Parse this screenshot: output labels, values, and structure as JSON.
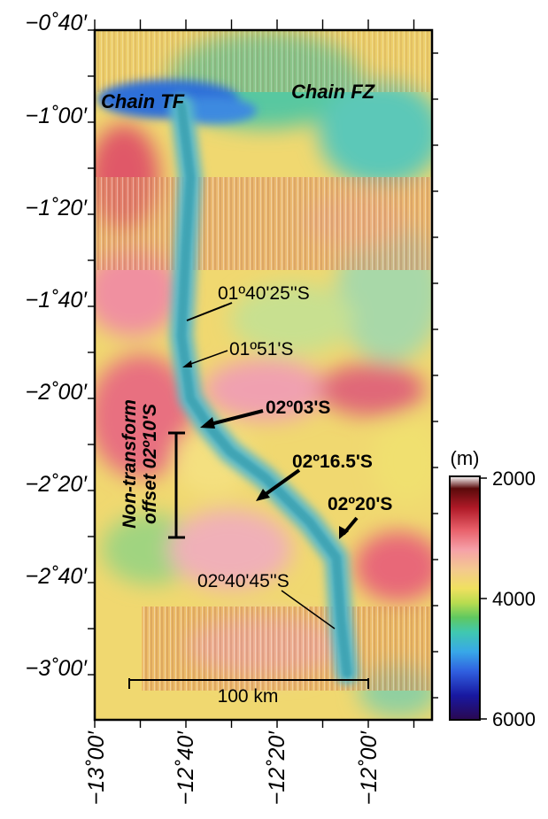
{
  "map": {
    "region_labels": [
      {
        "text": "Chain TF"
      },
      {
        "text": "Chain FZ"
      }
    ],
    "y_axis_labels": [
      "−0˚40′",
      "−1˚00′",
      "−1˚20′",
      "−1˚40′",
      "−2˚00′",
      "−2˚20′",
      "−2˚40′",
      "−3˚00′"
    ],
    "x_axis_labels": [
      "−13˚00′",
      "−12˚40′",
      "−12˚20′",
      "−12˚00′"
    ],
    "annotations": [
      {
        "text": "01º40'25''S",
        "bold": false
      },
      {
        "text": "01º51'S",
        "bold": false
      },
      {
        "text": "02º03'S",
        "bold": true
      },
      {
        "text": "02º16.5'S",
        "bold": true
      },
      {
        "text": "02º20'S",
        "bold": true
      },
      {
        "text": "02º40'45''S",
        "bold": false
      }
    ],
    "offset_label": {
      "line1": "Non-transform",
      "line2": "offset 02º10'S"
    },
    "scale_bar": {
      "label": "100 km",
      "length_km": 100
    },
    "colorbar": {
      "unit": "(m)",
      "ticks": [
        "2000",
        "4000",
        "6000"
      ],
      "min_depth": 2000,
      "max_depth": 6000
    }
  }
}
